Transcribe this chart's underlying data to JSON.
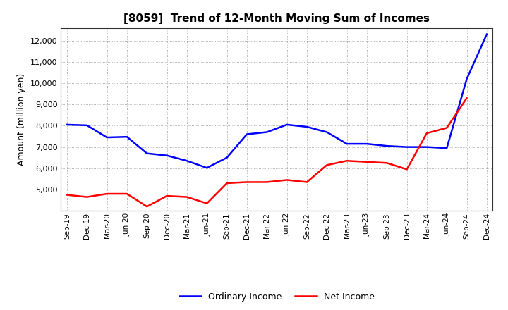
{
  "title": "[8059]  Trend of 12-Month Moving Sum of Incomes",
  "ylabel": "Amount (million yen)",
  "x_labels": [
    "Sep-19",
    "Dec-19",
    "Mar-20",
    "Jun-20",
    "Sep-20",
    "Dec-20",
    "Mar-21",
    "Jun-21",
    "Sep-21",
    "Dec-21",
    "Mar-22",
    "Jun-22",
    "Sep-22",
    "Dec-22",
    "Mar-23",
    "Jun-23",
    "Sep-23",
    "Dec-23",
    "Mar-24",
    "Jun-24",
    "Sep-24",
    "Dec-24"
  ],
  "ordinary_income": [
    8050,
    8020,
    7450,
    7480,
    6700,
    6600,
    6350,
    6020,
    6500,
    7600,
    7700,
    8050,
    7950,
    7700,
    7150,
    7150,
    7050,
    7000,
    7000,
    6950,
    10200,
    12300
  ],
  "net_income": [
    4750,
    4650,
    4800,
    4800,
    4200,
    4700,
    4650,
    4350,
    5300,
    5350,
    5350,
    5450,
    5350,
    6150,
    6350,
    6300,
    6250,
    5950,
    7650,
    7900,
    9300,
    null
  ],
  "ordinary_color": "#0000ff",
  "net_color": "#ff0000",
  "background_color": "#ffffff",
  "grid_color": "#999999",
  "ylim": [
    4000,
    12600
  ],
  "yticks": [
    5000,
    6000,
    7000,
    8000,
    9000,
    10000,
    11000,
    12000
  ],
  "legend_labels": [
    "Ordinary Income",
    "Net Income"
  ]
}
